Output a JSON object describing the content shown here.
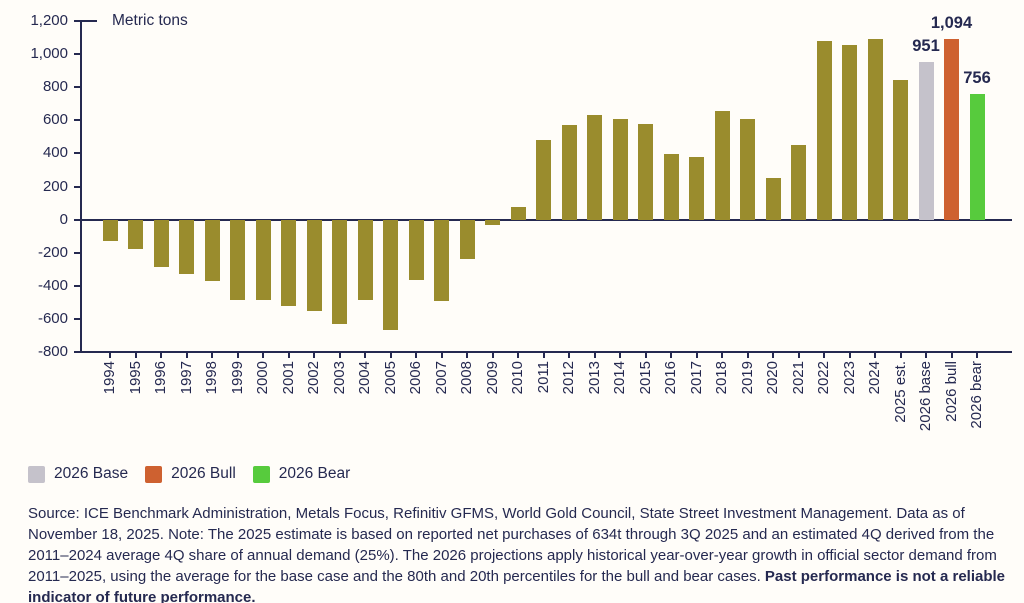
{
  "chart": {
    "axis_title": "Metric tons"
  },
  "chart_data": {
    "type": "bar",
    "title": "",
    "ylabel": "Metric tons",
    "xlabel": "",
    "ylim": [
      -800,
      1200
    ],
    "grid": false,
    "legend_position": "bottom-left",
    "y_ticks": [
      {
        "label": "1,200",
        "value": 1200
      },
      {
        "label": "1,000",
        "value": 1000
      },
      {
        "label": "800",
        "value": 800
      },
      {
        "label": "600",
        "value": 600
      },
      {
        "label": "400",
        "value": 400
      },
      {
        "label": "200",
        "value": 200
      },
      {
        "label": "0",
        "value": 0
      },
      {
        "label": "-200",
        "value": -200
      },
      {
        "label": "-400",
        "value": -400
      },
      {
        "label": "-600",
        "value": -600
      },
      {
        "label": "-800",
        "value": -800
      }
    ],
    "points": [
      {
        "label": "1994",
        "value": -130
      },
      {
        "label": "1995",
        "value": -175
      },
      {
        "label": "1996",
        "value": -285
      },
      {
        "label": "1997",
        "value": -330
      },
      {
        "label": "1998",
        "value": -370
      },
      {
        "label": "1999",
        "value": -485
      },
      {
        "label": "2000",
        "value": -485
      },
      {
        "label": "2001",
        "value": -525
      },
      {
        "label": "2002",
        "value": -555
      },
      {
        "label": "2003",
        "value": -630
      },
      {
        "label": "2004",
        "value": -485
      },
      {
        "label": "2005",
        "value": -665
      },
      {
        "label": "2006",
        "value": -365
      },
      {
        "label": "2007",
        "value": -490
      },
      {
        "label": "2008",
        "value": -240
      },
      {
        "label": "2009",
        "value": -35
      },
      {
        "label": "2010",
        "value": 77
      },
      {
        "label": "2011",
        "value": 483
      },
      {
        "label": "2012",
        "value": 570
      },
      {
        "label": "2013",
        "value": 630
      },
      {
        "label": "2014",
        "value": 605
      },
      {
        "label": "2015",
        "value": 580
      },
      {
        "label": "2016",
        "value": 395
      },
      {
        "label": "2017",
        "value": 378
      },
      {
        "label": "2018",
        "value": 657
      },
      {
        "label": "2019",
        "value": 605
      },
      {
        "label": "2020",
        "value": 253
      },
      {
        "label": "2021",
        "value": 450
      },
      {
        "label": "2022",
        "value": 1080
      },
      {
        "label": "2023",
        "value": 1052
      },
      {
        "label": "2024",
        "value": 1090
      },
      {
        "label": "2025 est.",
        "value": 845
      },
      {
        "label": "2026 base",
        "value": 951,
        "color_key": "base",
        "data_label": "951"
      },
      {
        "label": "2026 bull",
        "value": 1094,
        "color_key": "bull",
        "data_label": "1,094"
      },
      {
        "label": "2026 bear",
        "value": 756,
        "color_key": "bear",
        "data_label": "756"
      }
    ],
    "legend": [
      {
        "label": "2026 Base",
        "color_key": "base"
      },
      {
        "label": "2026 Bull",
        "color_key": "bull"
      },
      {
        "label": "2026 Bear",
        "color_key": "bear"
      }
    ],
    "colors": {
      "bar_default": "#9A8C2D",
      "base": "#C5C2CB",
      "bull": "#CE6130",
      "bear": "#57CB3D",
      "axis": "#252950",
      "text": "#252950"
    }
  },
  "footnote": {
    "text": "Source: ICE Benchmark Administration, Metals Focus, Refinitiv GFMS, World Gold Council, State Street Investment Management. Data as of November 18, 2025. Note: The 2025 estimate is based on reported net purchases of 634t through 3Q 2025 and an estimated 4Q derived from the 2011–2024 average 4Q share of annual demand (25%). The 2026 projections apply historical year-over-year growth in official sector demand from 2011–2025, using the average for the base case and the 80th and 20th percentiles for the bull and bear cases. ",
    "bold_text": "Past performance is not a reliable indicator of future performance."
  }
}
